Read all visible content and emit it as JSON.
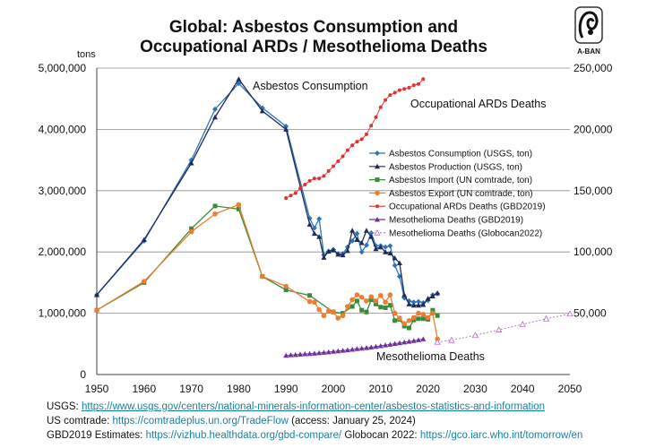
{
  "title": {
    "line1": "Global: Asbestos Consumption and",
    "line2": "Occupational ARDs / Mesothelioma Deaths"
  },
  "logo_text": "A-BAN",
  "chart_data": {
    "type": "line",
    "left_axis": {
      "unit_label": "tons",
      "ylim": [
        0,
        5000000
      ],
      "ticks": [
        "0",
        "1,000,000",
        "2,000,000",
        "3,000,000",
        "4,000,000",
        "5,000,000"
      ]
    },
    "right_axis": {
      "ylim": [
        0,
        250000
      ],
      "ticks": [
        "50,000",
        "100,000",
        "150,000",
        "200,000",
        "250,000"
      ]
    },
    "x_axis": {
      "xlim": [
        1950,
        2050
      ],
      "ticks": [
        "1950",
        "1960",
        "1970",
        "1980",
        "1990",
        "2000",
        "2010",
        "2020",
        "2030",
        "2040",
        "2050"
      ]
    },
    "grid": "horizontal",
    "annotations": {
      "asbestos_consumption": "Asbestos Consumption",
      "occupational_ards": "Occupational ARDs Deaths",
      "mesothelioma": "Mesothelioma Deaths"
    },
    "series": [
      {
        "name": "Asbestos Consumption (USGS, ton)",
        "axis": "left",
        "color": "#2e75b6",
        "marker": "diamond",
        "x": [
          1950,
          1960,
          1970,
          1975,
          1980,
          1985,
          1990,
          1995,
          1996,
          1997,
          1998,
          1999,
          2000,
          2001,
          2002,
          2003,
          2004,
          2005,
          2006,
          2007,
          2008,
          2009,
          2010,
          2011,
          2012,
          2013,
          2014,
          2015,
          2016,
          2017,
          2018,
          2019,
          2020,
          2021,
          2022
        ],
        "y": [
          1300000,
          2180000,
          3500000,
          4330000,
          4750000,
          4350000,
          4050000,
          2550000,
          2390000,
          2540000,
          1950000,
          2010000,
          2040000,
          1970000,
          1970000,
          2080000,
          2180000,
          2300000,
          2000000,
          2110000,
          2310000,
          2100000,
          2100000,
          2080000,
          2100000,
          1780000,
          1600000,
          1250000,
          1200000,
          1180000,
          1190000,
          1170000,
          1210000,
          1300000,
          1320000
        ]
      },
      {
        "name": "Asbestos Production (USGS, ton)",
        "axis": "left",
        "color": "#1f2a5c",
        "marker": "triangle",
        "x": [
          1950,
          1960,
          1970,
          1975,
          1980,
          1985,
          1990,
          1995,
          1996,
          1997,
          1998,
          1999,
          2000,
          2001,
          2002,
          2003,
          2004,
          2005,
          2006,
          2007,
          2008,
          2009,
          2010,
          2011,
          2012,
          2013,
          2014,
          2015,
          2016,
          2017,
          2018,
          2019,
          2020,
          2021,
          2022
        ],
        "y": [
          1300000,
          2200000,
          3450000,
          4200000,
          4820000,
          4300000,
          4000000,
          2450000,
          2300000,
          2250000,
          1910000,
          2010000,
          2030000,
          1960000,
          1950000,
          2020000,
          2350000,
          2200000,
          2150000,
          2350000,
          2250000,
          2050000,
          2080000,
          2000000,
          1980000,
          1900000,
          1820000,
          1300000,
          1150000,
          1130000,
          1130000,
          1140000,
          1240000,
          1280000,
          1330000
        ]
      },
      {
        "name": "Asbestos Import (UN comtrade, ton)",
        "axis": "left",
        "color": "#3a8c3a",
        "marker": "square",
        "x": [
          1950,
          1960,
          1970,
          1975,
          1980,
          1985,
          1990,
          1995,
          2000,
          2002,
          2004,
          2005,
          2006,
          2007,
          2008,
          2009,
          2010,
          2011,
          2012,
          2013,
          2014,
          2015,
          2016,
          2017,
          2018,
          2019,
          2020,
          2021,
          2022
        ],
        "y": [
          1050000,
          1500000,
          2380000,
          2750000,
          2700000,
          1600000,
          1380000,
          1290000,
          1020000,
          1000000,
          1110000,
          1200000,
          1050000,
          1020000,
          1220000,
          1150000,
          1100000,
          1090000,
          1130000,
          880000,
          900000,
          790000,
          760000,
          890000,
          910000,
          910000,
          900000,
          1050000,
          960000
        ]
      },
      {
        "name": "Asbestos Export (UN comtrade, ton)",
        "axis": "left",
        "color": "#ed7d31",
        "marker": "circle",
        "x": [
          1950,
          1960,
          1970,
          1975,
          1980,
          1985,
          1990,
          1995,
          1996,
          1997,
          1998,
          1999,
          2000,
          2001,
          2002,
          2003,
          2004,
          2005,
          2006,
          2007,
          2008,
          2009,
          2010,
          2011,
          2012,
          2013,
          2014,
          2015,
          2016,
          2017,
          2018,
          2019,
          2020,
          2021,
          2022
        ],
        "y": [
          1050000,
          1520000,
          2330000,
          2620000,
          2770000,
          1600000,
          1440000,
          1190000,
          1180000,
          1060000,
          960000,
          1040000,
          1020000,
          920000,
          960000,
          1110000,
          1220000,
          1300000,
          1260000,
          1200000,
          1270000,
          1200000,
          1290000,
          1180000,
          1300000,
          1000000,
          920000,
          830000,
          880000,
          930000,
          1000000,
          980000,
          930000,
          1000000,
          580000
        ]
      },
      {
        "name": "Occupational ARDs Deaths (GBD2019)",
        "axis": "right",
        "color": "#e03030",
        "marker": "dot",
        "x": [
          1990,
          1991,
          1992,
          1993,
          1994,
          1995,
          1996,
          1997,
          1998,
          1999,
          2000,
          2001,
          2002,
          2003,
          2004,
          2005,
          2006,
          2007,
          2008,
          2009,
          2010,
          2011,
          2012,
          2013,
          2014,
          2015,
          2016,
          2017,
          2018,
          2019
        ],
        "y": [
          144000,
          146000,
          148000,
          152000,
          155000,
          158000,
          160000,
          160000,
          162000,
          166000,
          170000,
          174000,
          178000,
          183000,
          187000,
          190000,
          192000,
          196000,
          203000,
          210000,
          218000,
          224000,
          228000,
          230000,
          232000,
          233000,
          234000,
          236000,
          237000,
          241000
        ]
      },
      {
        "name": "Mesothelioma Deaths (GBD2019)",
        "axis": "right",
        "color": "#7030a0",
        "marker": "triangle",
        "x": [
          1990,
          1991,
          1992,
          1993,
          1994,
          1995,
          1996,
          1997,
          1998,
          1999,
          2000,
          2001,
          2002,
          2003,
          2004,
          2005,
          2006,
          2007,
          2008,
          2009,
          2010,
          2011,
          2012,
          2013,
          2014,
          2015,
          2016,
          2017,
          2018,
          2019
        ],
        "y": [
          15500,
          16000,
          16200,
          16500,
          16800,
          17000,
          17300,
          17600,
          18000,
          18400,
          18800,
          19200,
          19600,
          20000,
          20500,
          21000,
          21400,
          21800,
          22300,
          22800,
          23400,
          24000,
          24600,
          25200,
          25800,
          26400,
          27000,
          27600,
          28200,
          29000
        ]
      },
      {
        "name": "Mesothelioma Deaths (Globocan2022)",
        "axis": "right",
        "color": "#b070c0",
        "marker": "open-triangle",
        "x": [
          2022,
          2025,
          2030,
          2035,
          2040,
          2045,
          2050
        ],
        "y": [
          26500,
          28000,
          32000,
          36500,
          41000,
          45500,
          49500
        ]
      }
    ]
  },
  "sources": {
    "usgs_label": "USGS: ",
    "usgs_url": "https://www.usgs.gov/centers/national-minerals-information-center/asbestos-statistics-and-information",
    "comtrade_label": "US comtrade: ",
    "comtrade_url": "https://comtradeplus.un.org/TradeFlow",
    "comtrade_access": "  (access: January 25, 2024)",
    "gbd_label": "GBD2019 Estimates: ",
    "gbd_url": "https://vizhub.healthdata.org/gbd-compare/",
    "globocan_label": "  Globocan 2022: ",
    "globocan_url": "https://gco.iarc.who.int/tomorrow/en"
  }
}
